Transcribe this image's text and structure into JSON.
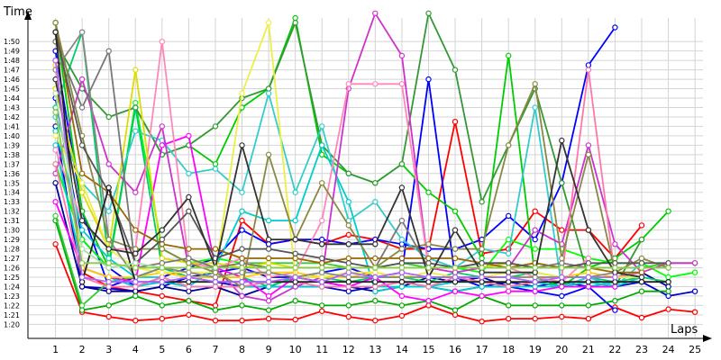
{
  "chart_data": {
    "type": "line",
    "ylabel": "Time",
    "xlabel": "Laps",
    "x": [
      1,
      2,
      3,
      4,
      5,
      6,
      7,
      8,
      9,
      10,
      11,
      12,
      13,
      14,
      15,
      16,
      17,
      18,
      19,
      20,
      21,
      22,
      23,
      24,
      25
    ],
    "x_ticks": [
      "1",
      "2",
      "3",
      "4",
      "5",
      "6",
      "7",
      "8",
      "9",
      "10",
      "11",
      "12",
      "13",
      "14",
      "15",
      "16",
      "17",
      "18",
      "19",
      "20",
      "21",
      "22",
      "23",
      "24",
      "25"
    ],
    "y_ticks": [
      "1:20",
      "1:21",
      "1:22",
      "1:23",
      "1:24",
      "1:25",
      "1:26",
      "1:27",
      "1:28",
      "1:29",
      "1:30",
      "1:31",
      "1:32",
      "1:33",
      "1:34",
      "1:35",
      "1:36",
      "1:37",
      "1:38",
      "1:39",
      "1:40",
      "1:41",
      "1:42",
      "1:43",
      "1:44",
      "1:45",
      "1:46",
      "1:47",
      "1:48",
      "1:49",
      "1:50"
    ],
    "y_tick_values": [
      80,
      81,
      82,
      83,
      84,
      85,
      86,
      87,
      88,
      89,
      90,
      91,
      92,
      93,
      94,
      95,
      96,
      97,
      98,
      99,
      100,
      101,
      102,
      103,
      104,
      105,
      106,
      107,
      108,
      109,
      110
    ],
    "ylim": [
      78.6,
      112.5
    ],
    "xlim": [
      0,
      25.3
    ],
    "grid": true,
    "series": [
      {
        "color": "#ff0000",
        "values": [
          88.5,
          81.3,
          80.8,
          80.4,
          80.6,
          81.0,
          80.4,
          80.4,
          80.6,
          80.5,
          81.4,
          80.8,
          80.4,
          80.9,
          82.0,
          81.0,
          80.3,
          80.6,
          80.6,
          80.8,
          80.6,
          81.8,
          80.7,
          81.6,
          81.3
        ]
      },
      {
        "color": "#ff0000",
        "values": [
          108.0,
          85.5,
          84.0,
          83.5,
          83.0,
          82.5,
          82.0,
          91.0,
          88.5,
          89.0,
          88.5,
          89.5,
          89.0,
          88.0,
          88.0,
          101.5,
          87.5,
          88.0,
          92.0,
          90.0,
          90.0,
          87.0,
          90.5,
          null,
          null
        ]
      },
      {
        "color": "#0000cc",
        "values": [
          101.0,
          84.0,
          83.8,
          83.5,
          84.0,
          85.0,
          84.5,
          84.0,
          84.0,
          84.0,
          84.0,
          83.5,
          84.0,
          84.5,
          84.0,
          83.5,
          84.0,
          84.5,
          84.0,
          84.5,
          84.0,
          84.0,
          84.5,
          83.0,
          83.5
        ]
      },
      {
        "color": "#0000ff",
        "values": [
          104.0,
          89.0,
          86.0,
          84.0,
          85.0,
          86.0,
          87.0,
          90.0,
          88.5,
          89.0,
          89.0,
          88.5,
          89.0,
          88.5,
          88.0,
          88.0,
          89.0,
          91.5,
          89.0,
          95.0,
          107.5,
          111.5,
          null,
          null,
          null
        ]
      },
      {
        "color": "#0000ff",
        "values": [
          109.0,
          92.0,
          84.0,
          85.0,
          86.0,
          85.0,
          85.5,
          86.0,
          85.0,
          85.0,
          85.5,
          86.0,
          85.0,
          85.5,
          106.0,
          85.0,
          84.0,
          84.0,
          83.5,
          83.0,
          84.0,
          81.5,
          null,
          null,
          null
        ]
      },
      {
        "color": "#000099",
        "values": [
          95.0,
          84.0,
          83.5,
          83.5,
          84.0,
          83.5,
          84.0,
          83.0,
          84.0,
          85.0,
          84.5,
          84.0,
          83.5,
          84.0,
          85.0,
          84.5,
          85.0,
          84.0,
          84.5,
          84.0,
          85.0,
          85.0,
          85.5,
          84.0,
          null
        ]
      },
      {
        "color": "#00aa00",
        "values": [
          91.0,
          81.5,
          82.0,
          83.0,
          82.0,
          82.5,
          81.5,
          82.0,
          81.5,
          82.5,
          82.0,
          82.0,
          82.5,
          82.0,
          82.5,
          81.5,
          83.0,
          82.0,
          82.0,
          82.0,
          82.0,
          82.5,
          83.5,
          83.5,
          null
        ]
      },
      {
        "color": "#00cc00",
        "values": [
          112.0,
          92.0,
          86.0,
          103.0,
          98.0,
          99.0,
          97.0,
          103.0,
          105.0,
          112.5,
          98.0,
          96.0,
          95.0,
          97.0,
          94.0,
          92.0,
          87.0,
          108.5,
          85.0,
          84.0,
          86.0,
          87.0,
          89.0,
          92.0,
          null
        ]
      },
      {
        "color": "#00ff00",
        "values": [
          97.0,
          89.0,
          86.0,
          103.5,
          88.0,
          86.5,
          87.0,
          86.5,
          86.0,
          86.0,
          86.0,
          86.0,
          86.0,
          86.0,
          86.0,
          86.0,
          85.5,
          89.0,
          88.0,
          88.0,
          87.0,
          86.5,
          86.5,
          85.0,
          85.5
        ]
      },
      {
        "color": "#00cc66",
        "values": [
          103.0,
          111.0,
          86.5,
          103.0,
          86.0,
          85.0,
          85.0,
          85.0,
          84.0,
          85.0,
          85.0,
          84.5,
          85.0,
          85.0,
          84.5,
          85.5,
          85.0,
          85.0,
          85.5,
          85.0,
          85.0,
          84.5,
          85.0,
          84.5,
          null
        ]
      },
      {
        "color": "#33cc33",
        "values": [
          91.5,
          82.0,
          84.5,
          85.0,
          86.0,
          86.0,
          86.0,
          86.5,
          86.5,
          86.5,
          86.5,
          86.0,
          86.0,
          86.5,
          86.0,
          86.0,
          86.0,
          86.0,
          86.5,
          86.0,
          86.0,
          86.0,
          86.0,
          86.5,
          86.5
        ]
      },
      {
        "color": "#339933",
        "values": [
          110.0,
          105.0,
          102.0,
          103.0,
          98.0,
          99.0,
          101.0,
          104.0,
          105.0,
          112.0,
          99.0,
          96.0,
          95.0,
          97.0,
          113.0,
          107.0,
          93.0,
          99.0,
          105.0,
          95.0,
          85.0,
          84.0,
          89.0,
          null,
          null
        ]
      },
      {
        "color": "#00cccc",
        "values": [
          99.0,
          86.0,
          85.0,
          84.0,
          84.5,
          84.0,
          84.0,
          84.0,
          84.0,
          84.0,
          84.0,
          84.0,
          84.0,
          84.0,
          84.0,
          83.5,
          84.0,
          84.0,
          84.0,
          84.0,
          84.0,
          84.5,
          84.5,
          null,
          null
        ]
      },
      {
        "color": "#00cccc",
        "values": [
          100.5,
          90.0,
          87.0,
          85.0,
          85.0,
          84.0,
          86.0,
          92.0,
          91.0,
          91.0,
          99.0,
          93.0,
          83.5,
          84.0,
          84.0,
          84.5,
          84.5,
          84.0,
          84.5,
          84.0,
          84.5,
          84.0,
          85.0,
          null,
          null
        ]
      },
      {
        "color": "#33cccc",
        "values": [
          102.0,
          95.0,
          92.0,
          100.5,
          99.5,
          96.0,
          96.5,
          94.0,
          104.5,
          94.0,
          101.0,
          91.0,
          93.0,
          89.0,
          87.0,
          86.0,
          88.0,
          87.5,
          103.0,
          84.0,
          85.0,
          84.0,
          86.5,
          null,
          null
        ]
      },
      {
        "color": "#ff00ff",
        "values": [
          93.0,
          86.0,
          85.0,
          84.5,
          99.0,
          100.0,
          86.0,
          85.0,
          83.0,
          85.0,
          84.5,
          84.0,
          85.0,
          83.0,
          82.5,
          83.5,
          83.0,
          83.5,
          83.5,
          84.0,
          84.0,
          84.0,
          null,
          null,
          null
        ]
      },
      {
        "color": "#cc33cc",
        "values": [
          96.0,
          106.0,
          97.0,
          94.0,
          101.0,
          86.0,
          86.0,
          83.0,
          82.5,
          84.0,
          85.0,
          105.0,
          113.0,
          108.5,
          86.0,
          85.5,
          86.0,
          86.0,
          90.0,
          88.5,
          99.0,
          88.5,
          85.5,
          86.5,
          86.5
        ]
      },
      {
        "color": "#ff77aa",
        "values": [
          97.0,
          85.0,
          84.0,
          84.0,
          85.0,
          84.0,
          84.0,
          84.0,
          84.5,
          84.5,
          84.0,
          84.0,
          84.0,
          84.5,
          84.0,
          85.0,
          84.5,
          84.0,
          84.5,
          85.0,
          107.0,
          85.0,
          85.5,
          null,
          null
        ]
      },
      {
        "color": "#ff88bb",
        "values": [
          98.5,
          91.0,
          88.0,
          88.0,
          110.0,
          86.5,
          86.0,
          87.0,
          85.0,
          85.5,
          91.0,
          105.5,
          105.5,
          105.5,
          86.0,
          86.0,
          86.0,
          86.0,
          85.0,
          84.5,
          87.0,
          null,
          null,
          null,
          null
        ]
      },
      {
        "color": "#ffcc00",
        "values": [
          107.5,
          86.0,
          85.0,
          85.0,
          85.5,
          85.0,
          85.0,
          85.0,
          85.5,
          85.5,
          85.0,
          85.0,
          85.5,
          85.0,
          85.0,
          85.0,
          85.0,
          85.0,
          85.0,
          85.0,
          85.5,
          85.0,
          85.0,
          null,
          null
        ]
      },
      {
        "color": "#dddd00",
        "values": [
          105.0,
          94.0,
          88.0,
          107.0,
          87.0,
          86.5,
          86.5,
          86.0,
          86.5,
          86.0,
          86.0,
          86.0,
          86.0,
          86.0,
          86.0,
          86.0,
          86.0,
          86.5,
          86.0,
          86.0,
          86.0,
          86.0,
          86.0,
          null,
          null
        ]
      },
      {
        "color": "#eeee44",
        "values": [
          100.0,
          95.0,
          88.0,
          86.0,
          85.5,
          85.5,
          85.5,
          104.5,
          112.0,
          85.0,
          85.0,
          85.5,
          85.5,
          85.0,
          85.5,
          85.0,
          85.0,
          85.5,
          85.5,
          85.0,
          85.0,
          85.0,
          85.0,
          null,
          null
        ]
      },
      {
        "color": "#996600",
        "values": [
          112.0,
          96.0,
          94.0,
          90.0,
          88.5,
          88.0,
          88.0,
          87.0,
          87.0,
          87.0,
          86.5,
          87.0,
          87.0,
          87.0,
          87.0,
          87.0,
          86.5,
          86.0,
          86.5,
          86.0,
          86.0,
          85.5,
          85.5,
          null,
          null
        ]
      },
      {
        "color": "#888888",
        "values": [
          107.0,
          111.0,
          89.0,
          85.0,
          86.0,
          85.5,
          85.0,
          85.5,
          85.5,
          85.0,
          85.5,
          85.0,
          85.0,
          85.0,
          85.0,
          85.0,
          85.0,
          85.0,
          85.0,
          85.0,
          85.0,
          85.5,
          85.0,
          null,
          null
        ]
      },
      {
        "color": "#777777",
        "values": [
          110.0,
          103.0,
          109.0,
          86.0,
          86.5,
          87.0,
          86.0,
          86.5,
          86.0,
          86.0,
          86.0,
          86.0,
          86.0,
          91.0,
          86.0,
          86.0,
          86.5,
          86.5,
          86.0,
          86.5,
          86.0,
          86.0,
          86.0,
          86.0,
          null
        ]
      },
      {
        "color": "#888844",
        "values": [
          112.0,
          100.0,
          89.0,
          88.0,
          88.0,
          86.5,
          85.5,
          84.0,
          98.0,
          89.0,
          95.0,
          90.5,
          86.0,
          88.0,
          88.5,
          88.0,
          88.0,
          99.0,
          105.5,
          87.0,
          98.0,
          85.5,
          87.0,
          86.0,
          null
        ]
      },
      {
        "color": "#555555",
        "values": [
          111.0,
          99.0,
          94.0,
          86.5,
          89.0,
          92.0,
          87.0,
          88.0,
          88.0,
          87.5,
          87.0,
          86.5,
          86.0,
          86.5,
          86.5,
          86.0,
          86.5,
          86.5,
          86.0,
          86.0,
          86.5,
          86.5,
          86.5,
          86.5,
          null
        ]
      },
      {
        "color": "#333333",
        "values": [
          106.0,
          91.0,
          88.0,
          87.5,
          90.0,
          93.5,
          86.0,
          99.0,
          89.0,
          89.0,
          88.5,
          88.5,
          88.5,
          94.5,
          85.0,
          90.0,
          85.5,
          85.5,
          85.5,
          99.5,
          90.0,
          85.5,
          85.0,
          null,
          null
        ]
      },
      {
        "color": "#222222",
        "values": [
          111.0,
          84.5,
          94.5,
          84.5,
          84.5,
          84.5,
          84.5,
          84.5,
          84.5,
          84.5,
          84.5,
          84.5,
          84.5,
          84.5,
          84.5,
          84.5,
          84.5,
          84.5,
          84.5,
          84.5,
          84.5,
          84.5,
          84.5,
          84.5,
          null
        ]
      },
      {
        "color": "#aa66ff",
        "values": [
          108.0,
          85.0,
          84.5,
          84.5,
          84.5,
          85.0,
          84.5,
          84.5,
          84.5,
          85.0,
          84.5,
          85.5,
          85.0,
          85.5,
          85.0,
          85.0,
          85.0,
          85.0,
          84.5,
          85.0,
          85.0,
          85.0,
          null,
          null,
          null
        ]
      },
      {
        "color": "#aaddaa",
        "values": [
          104.5,
          88.0,
          86.0,
          86.5,
          86.0,
          86.0,
          86.0,
          86.0,
          86.0,
          86.0,
          86.0,
          86.0,
          86.0,
          86.0,
          86.0,
          86.0,
          86.0,
          86.0,
          86.0,
          86.0,
          86.0,
          86.0,
          86.0,
          null,
          null
        ]
      },
      {
        "color": "#88cc44",
        "values": [
          102.5,
          86.5,
          86.5,
          86.0,
          86.0,
          86.0,
          86.0,
          86.0,
          86.0,
          86.0,
          86.0,
          86.0,
          86.0,
          86.0,
          86.0,
          86.0,
          86.0,
          86.0,
          86.0,
          86.0,
          86.0,
          86.0,
          86.0,
          86.0,
          null
        ]
      }
    ]
  }
}
